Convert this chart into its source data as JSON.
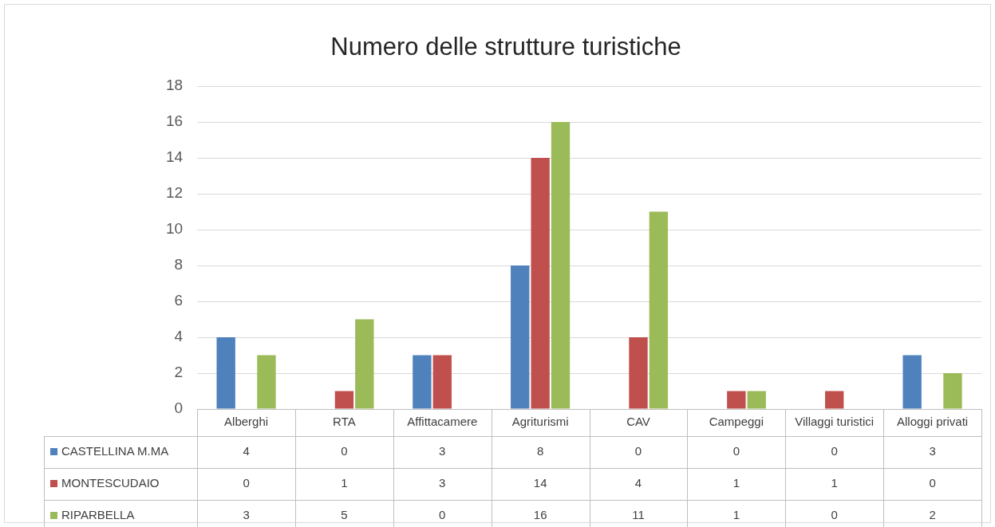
{
  "chart_data": {
    "type": "bar",
    "title": "Numero delle strutture turistiche",
    "categories": [
      "Alberghi",
      "RTA",
      "Affittacamere",
      "Agriturismi",
      "CAV",
      "Campeggi",
      "Villaggi turistici",
      "Alloggi privati"
    ],
    "series": [
      {
        "name": "CASTELLINA M.MA",
        "color": "#4f81bd",
        "values": [
          4,
          0,
          3,
          8,
          0,
          0,
          0,
          3
        ]
      },
      {
        "name": "MONTESCUDAIO",
        "color": "#c0504d",
        "values": [
          0,
          1,
          3,
          14,
          4,
          1,
          1,
          0
        ]
      },
      {
        "name": "RIPARBELLA",
        "color": "#9bbb59",
        "values": [
          3,
          5,
          0,
          16,
          11,
          1,
          0,
          2
        ]
      }
    ],
    "ylim": [
      0,
      18
    ],
    "yticks": [
      0,
      2,
      4,
      6,
      8,
      10,
      12,
      14,
      16,
      18
    ],
    "grid": "y",
    "legend": "bottom left",
    "data_labels": true
  }
}
